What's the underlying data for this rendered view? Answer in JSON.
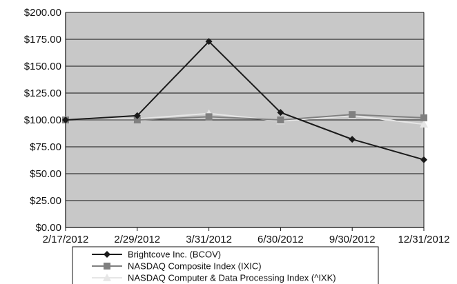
{
  "chart_data": {
    "type": "line",
    "title": "",
    "xlabel": "",
    "ylabel": "",
    "categories": [
      "2/17/2012",
      "2/29/2012",
      "3/31/2012",
      "6/30/2012",
      "9/30/2012",
      "12/31/2012"
    ],
    "ylim": [
      0,
      200
    ],
    "yticks": [
      0,
      25,
      50,
      75,
      100,
      125,
      150,
      175,
      200
    ],
    "ytick_labels": [
      "$0.00",
      "$25.00",
      "$50.00",
      "$75.00",
      "$100.00",
      "$125.00",
      "$150.00",
      "$175.00",
      "$200.00"
    ],
    "grid": true,
    "plot_background": "#c8c8c8",
    "legend_position": "bottom",
    "series": [
      {
        "name": "Brightcove Inc. (BCOV)",
        "values": [
          100,
          104,
          173,
          107,
          82,
          63
        ],
        "color": "#1a1a1a",
        "marker": "diamond"
      },
      {
        "name": "NASDAQ Composite Index (IXIC)",
        "values": [
          100,
          100,
          103,
          100,
          105,
          102
        ],
        "color": "#808080",
        "marker": "square"
      },
      {
        "name": "NASDAQ Computer & Data Processing Index (^IXK)",
        "values": [
          100,
          101,
          106,
          99,
          104,
          96
        ],
        "color": "#e6e6e6",
        "marker": "triangle"
      }
    ]
  }
}
